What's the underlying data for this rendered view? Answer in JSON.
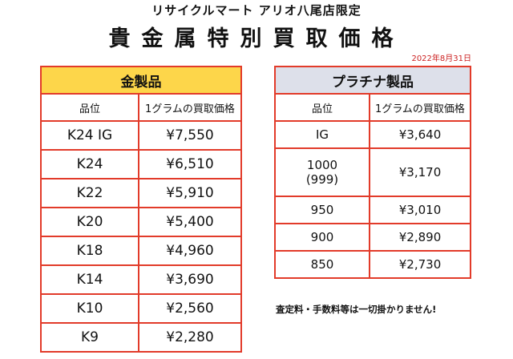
{
  "header": {
    "store_label": "リサイクルマート アリオ八尾店限定",
    "title": "貴金属特別買取価格",
    "date": "2022年8月31日"
  },
  "gold": {
    "title": "金製品",
    "col_grade": "品位",
    "col_price": "1グラムの買取価格",
    "rows": [
      {
        "grade": "K24 IG",
        "price": "¥7,550"
      },
      {
        "grade": "K24",
        "price": "¥6,510"
      },
      {
        "grade": "K22",
        "price": "¥5,910"
      },
      {
        "grade": "K20",
        "price": "¥5,400"
      },
      {
        "grade": "K18",
        "price": "¥4,960"
      },
      {
        "grade": "K14",
        "price": "¥3,690"
      },
      {
        "grade": "K10",
        "price": "¥2,560"
      },
      {
        "grade": "K9",
        "price": "¥2,280"
      }
    ]
  },
  "platinum": {
    "title": "プラチナ製品",
    "col_grade": "品位",
    "col_price": "1グラムの買取価格",
    "rows": [
      {
        "grade": "IG",
        "price": "¥3,640"
      },
      {
        "grade": "1000",
        "grade_sub": "(999)",
        "price": "¥3,170"
      },
      {
        "grade": "950",
        "price": "¥3,010"
      },
      {
        "grade": "900",
        "price": "¥2,890"
      },
      {
        "grade": "850",
        "price": "¥2,730"
      }
    ]
  },
  "note": "査定料・手数料等は一切掛かりません!",
  "colors": {
    "border": "#e23b2a",
    "gold_header": "#fdd64a",
    "platinum_header": "#dde0ea"
  }
}
